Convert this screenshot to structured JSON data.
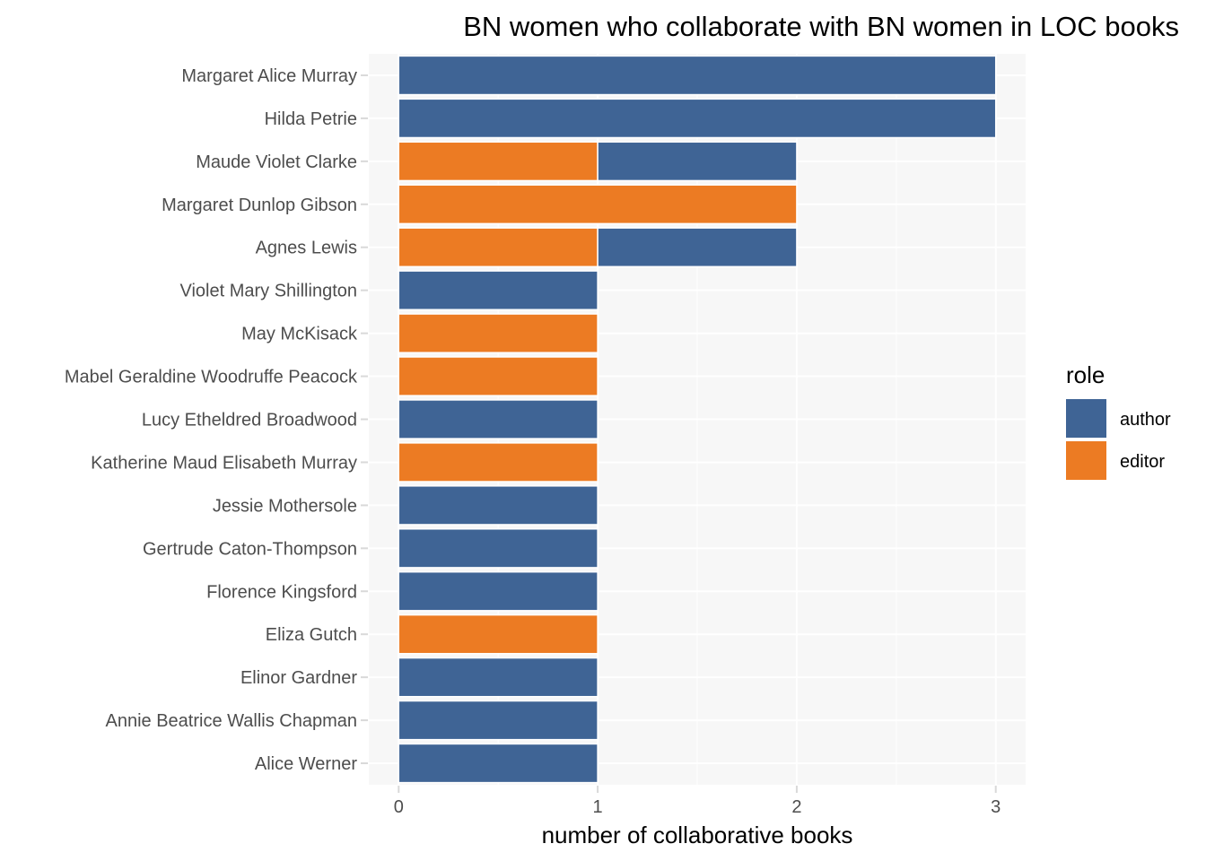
{
  "chart_data": {
    "type": "bar",
    "orientation": "horizontal",
    "stacked": true,
    "title": "BN women who collaborate with BN women in LOC books",
    "xlabel": "number of collaborative books",
    "ylabel": "",
    "xlim": [
      -0.15,
      3.15
    ],
    "x_ticks": [
      "0",
      "1",
      "2",
      "3"
    ],
    "grid": true,
    "legend_position": "right",
    "legend_title": "role",
    "categories": [
      "Margaret Alice Murray",
      "Hilda Petrie",
      "Maude Violet Clarke",
      "Margaret Dunlop Gibson",
      "Agnes Lewis",
      "Violet Mary Shillington",
      "May McKisack",
      "Mabel Geraldine Woodruffe Peacock",
      "Lucy Etheldred Broadwood",
      "Katherine Maud Elisabeth Murray",
      "Jessie Mothersole",
      "Gertrude Caton-Thompson",
      "Florence Kingsford",
      "Eliza Gutch",
      "Elinor Gardner",
      "Annie Beatrice Wallis Chapman",
      "Alice Werner"
    ],
    "series": [
      {
        "name": "editor",
        "color": "#ec7b23",
        "values": [
          0,
          0,
          1,
          2,
          1,
          0,
          1,
          1,
          0,
          1,
          0,
          0,
          0,
          1,
          0,
          0,
          0
        ]
      },
      {
        "name": "author",
        "color": "#3f6495",
        "values": [
          3,
          3,
          1,
          0,
          1,
          1,
          0,
          0,
          1,
          0,
          1,
          1,
          1,
          0,
          1,
          1,
          1
        ]
      }
    ],
    "legend_order": [
      "author",
      "editor"
    ],
    "colors": {
      "panel_background": "#f7f7f7",
      "grid": "#ffffff",
      "tick_text": "#4d4d4d",
      "tick_mark": "#d9d9d9"
    }
  }
}
